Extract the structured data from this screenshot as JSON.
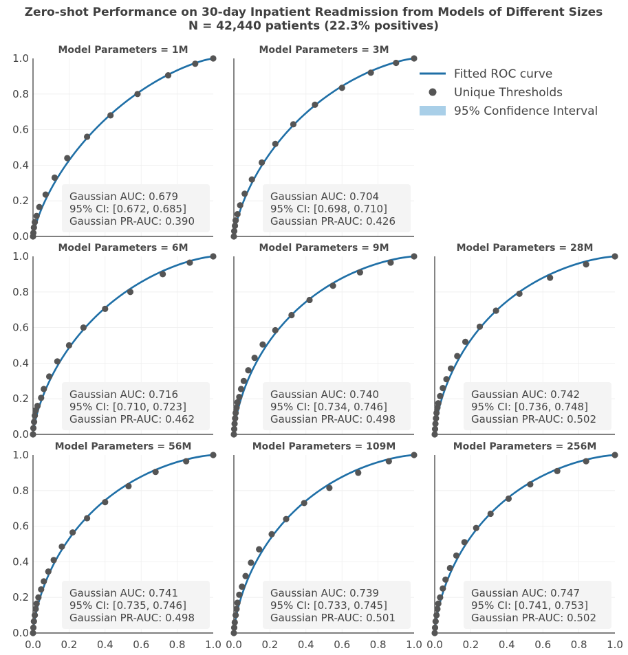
{
  "colors": {
    "curve": "#1f6fa6",
    "point": "#555555",
    "ci_fill": "#a9cfe8",
    "annotation_bg": "#f3f3f3",
    "grid": "#eeeeee",
    "axis": "#333333"
  },
  "figure": {
    "title_line1": "Zero-shot Performance on 30-day Inpatient Readmission from Models of Different Sizes",
    "title_line2": "N = 42,440 patients (22.3% positives)"
  },
  "legend": {
    "items": [
      {
        "label": "Fitted ROC curve",
        "kind": "line"
      },
      {
        "label": "Unique Thresholds",
        "kind": "point"
      },
      {
        "label": "95% Confidence Interval",
        "kind": "patch"
      }
    ]
  },
  "chart_data": [
    {
      "type": "line",
      "title": "Model Parameters = 1M",
      "xlim": [
        0,
        1
      ],
      "ylim": [
        0,
        1
      ],
      "x_ticks": [
        "0.0",
        "0.2",
        "0.4",
        "0.6",
        "0.8",
        "1.0"
      ],
      "y_ticks": [
        "0.0",
        "0.2",
        "0.4",
        "0.6",
        "0.8",
        "1.0"
      ],
      "show_x_ticks": false,
      "show_y_ticks": true,
      "gaussian_auc": 0.679,
      "annotation": [
        "Gaussian AUC: 0.679",
        "95% CI: [0.672, 0.685]",
        "Gaussian PR-AUC: 0.390"
      ],
      "points": [
        [
          0.0,
          0.0
        ],
        [
          0.002,
          0.02
        ],
        [
          0.005,
          0.05
        ],
        [
          0.01,
          0.08
        ],
        [
          0.02,
          0.115
        ],
        [
          0.035,
          0.165
        ],
        [
          0.07,
          0.235
        ],
        [
          0.12,
          0.33
        ],
        [
          0.19,
          0.44
        ],
        [
          0.3,
          0.56
        ],
        [
          0.43,
          0.68
        ],
        [
          0.58,
          0.8
        ],
        [
          0.75,
          0.905
        ],
        [
          0.9,
          0.97
        ],
        [
          1.0,
          1.0
        ]
      ]
    },
    {
      "type": "line",
      "title": "Model Parameters = 3M",
      "xlim": [
        0,
        1
      ],
      "ylim": [
        0,
        1
      ],
      "x_ticks": [
        "0.0",
        "0.2",
        "0.4",
        "0.6",
        "0.8",
        "1.0"
      ],
      "y_ticks": [
        "0.0",
        "0.2",
        "0.4",
        "0.6",
        "0.8",
        "1.0"
      ],
      "show_x_ticks": false,
      "show_y_ticks": false,
      "gaussian_auc": 0.704,
      "annotation": [
        "Gaussian AUC: 0.704",
        "95% CI: [0.698, 0.710]",
        "Gaussian PR-AUC: 0.426"
      ],
      "points": [
        [
          0.0,
          0.0
        ],
        [
          0.002,
          0.03
        ],
        [
          0.006,
          0.06
        ],
        [
          0.01,
          0.09
        ],
        [
          0.02,
          0.125
        ],
        [
          0.035,
          0.175
        ],
        [
          0.06,
          0.24
        ],
        [
          0.1,
          0.32
        ],
        [
          0.155,
          0.415
        ],
        [
          0.23,
          0.52
        ],
        [
          0.33,
          0.63
        ],
        [
          0.45,
          0.74
        ],
        [
          0.6,
          0.835
        ],
        [
          0.76,
          0.92
        ],
        [
          0.9,
          0.975
        ],
        [
          1.0,
          1.0
        ]
      ]
    },
    {
      "type": "line",
      "title": "Model Parameters = 6M",
      "xlim": [
        0,
        1
      ],
      "ylim": [
        0,
        1
      ],
      "x_ticks": [
        "0.0",
        "0.2",
        "0.4",
        "0.6",
        "0.8",
        "1.0"
      ],
      "y_ticks": [
        "0.0",
        "0.2",
        "0.4",
        "0.6",
        "0.8",
        "1.0"
      ],
      "show_x_ticks": false,
      "show_y_ticks": true,
      "gaussian_auc": 0.716,
      "annotation": [
        "Gaussian AUC: 0.716",
        "95% CI: [0.710, 0.723]",
        "Gaussian PR-AUC: 0.462"
      ],
      "points": [
        [
          0.0,
          0.0
        ],
        [
          0.002,
          0.035
        ],
        [
          0.006,
          0.07
        ],
        [
          0.01,
          0.105
        ],
        [
          0.015,
          0.135
        ],
        [
          0.025,
          0.16
        ],
        [
          0.045,
          0.205
        ],
        [
          0.06,
          0.255
        ],
        [
          0.09,
          0.325
        ],
        [
          0.135,
          0.41
        ],
        [
          0.2,
          0.5
        ],
        [
          0.28,
          0.6
        ],
        [
          0.4,
          0.705
        ],
        [
          0.54,
          0.8
        ],
        [
          0.72,
          0.9
        ],
        [
          0.87,
          0.965
        ],
        [
          1.0,
          1.0
        ]
      ]
    },
    {
      "type": "line",
      "title": "Model Parameters = 9M",
      "xlim": [
        0,
        1
      ],
      "ylim": [
        0,
        1
      ],
      "x_ticks": [
        "0.0",
        "0.2",
        "0.4",
        "0.6",
        "0.8",
        "1.0"
      ],
      "y_ticks": [
        "0.0",
        "0.2",
        "0.4",
        "0.6",
        "0.8",
        "1.0"
      ],
      "show_x_ticks": false,
      "show_y_ticks": false,
      "gaussian_auc": 0.74,
      "annotation": [
        "Gaussian AUC: 0.740",
        "95% CI: [0.734, 0.746]",
        "Gaussian PR-AUC: 0.498"
      ],
      "points": [
        [
          0.0,
          0.0
        ],
        [
          0.002,
          0.03
        ],
        [
          0.004,
          0.06
        ],
        [
          0.007,
          0.09
        ],
        [
          0.01,
          0.12
        ],
        [
          0.015,
          0.15
        ],
        [
          0.02,
          0.18
        ],
        [
          0.03,
          0.21
        ],
        [
          0.04,
          0.255
        ],
        [
          0.055,
          0.3
        ],
        [
          0.08,
          0.36
        ],
        [
          0.115,
          0.43
        ],
        [
          0.16,
          0.505
        ],
        [
          0.23,
          0.585
        ],
        [
          0.32,
          0.67
        ],
        [
          0.42,
          0.755
        ],
        [
          0.55,
          0.835
        ],
        [
          0.7,
          0.91
        ],
        [
          0.87,
          0.965
        ],
        [
          1.0,
          1.0
        ]
      ]
    },
    {
      "type": "line",
      "title": "Model Parameters = 28M",
      "xlim": [
        0,
        1
      ],
      "ylim": [
        0,
        1
      ],
      "x_ticks": [
        "0.0",
        "0.2",
        "0.4",
        "0.6",
        "0.8",
        "1.0"
      ],
      "y_ticks": [
        "0.0",
        "0.2",
        "0.4",
        "0.6",
        "0.8",
        "1.0"
      ],
      "show_x_ticks": false,
      "show_y_ticks": false,
      "gaussian_auc": 0.742,
      "annotation": [
        "Gaussian AUC: 0.742",
        "95% CI: [0.736, 0.748]",
        "Gaussian PR-AUC: 0.502"
      ],
      "points": [
        [
          0.0,
          0.0
        ],
        [
          0.002,
          0.03
        ],
        [
          0.004,
          0.06
        ],
        [
          0.007,
          0.09
        ],
        [
          0.01,
          0.12
        ],
        [
          0.015,
          0.15
        ],
        [
          0.02,
          0.175
        ],
        [
          0.03,
          0.215
        ],
        [
          0.045,
          0.26
        ],
        [
          0.065,
          0.31
        ],
        [
          0.09,
          0.37
        ],
        [
          0.125,
          0.44
        ],
        [
          0.17,
          0.52
        ],
        [
          0.25,
          0.605
        ],
        [
          0.34,
          0.695
        ],
        [
          0.47,
          0.79
        ],
        [
          0.64,
          0.88
        ],
        [
          0.84,
          0.955
        ],
        [
          1.0,
          1.0
        ]
      ]
    },
    {
      "type": "line",
      "title": "Model Parameters = 56M",
      "xlim": [
        0,
        1
      ],
      "ylim": [
        0,
        1
      ],
      "x_ticks": [
        "0.0",
        "0.2",
        "0.4",
        "0.6",
        "0.8",
        "1.0"
      ],
      "y_ticks": [
        "0.0",
        "0.2",
        "0.4",
        "0.6",
        "0.8",
        "1.0"
      ],
      "show_x_ticks": true,
      "show_y_ticks": true,
      "gaussian_auc": 0.741,
      "annotation": [
        "Gaussian AUC: 0.741",
        "95% CI: [0.735, 0.746]",
        "Gaussian PR-AUC: 0.498"
      ],
      "points": [
        [
          0.0,
          0.0
        ],
        [
          0.002,
          0.03
        ],
        [
          0.005,
          0.065
        ],
        [
          0.01,
          0.1
        ],
        [
          0.015,
          0.135
        ],
        [
          0.02,
          0.165
        ],
        [
          0.03,
          0.2
        ],
        [
          0.045,
          0.245
        ],
        [
          0.06,
          0.29
        ],
        [
          0.085,
          0.345
        ],
        [
          0.115,
          0.41
        ],
        [
          0.16,
          0.485
        ],
        [
          0.22,
          0.565
        ],
        [
          0.3,
          0.645
        ],
        [
          0.4,
          0.735
        ],
        [
          0.53,
          0.825
        ],
        [
          0.68,
          0.905
        ],
        [
          0.85,
          0.965
        ],
        [
          1.0,
          1.0
        ]
      ]
    },
    {
      "type": "line",
      "title": "Model Parameters = 109M",
      "xlim": [
        0,
        1
      ],
      "ylim": [
        0,
        1
      ],
      "x_ticks": [
        "0.0",
        "0.2",
        "0.4",
        "0.6",
        "0.8",
        "1.0"
      ],
      "y_ticks": [
        "0.0",
        "0.2",
        "0.4",
        "0.6",
        "0.8",
        "1.0"
      ],
      "show_x_ticks": true,
      "show_y_ticks": false,
      "gaussian_auc": 0.739,
      "annotation": [
        "Gaussian AUC: 0.739",
        "95% CI: [0.733, 0.745]",
        "Gaussian PR-AUC: 0.501"
      ],
      "points": [
        [
          0.0,
          0.0
        ],
        [
          0.002,
          0.03
        ],
        [
          0.005,
          0.06
        ],
        [
          0.01,
          0.1
        ],
        [
          0.015,
          0.135
        ],
        [
          0.02,
          0.17
        ],
        [
          0.03,
          0.215
        ],
        [
          0.045,
          0.26
        ],
        [
          0.065,
          0.32
        ],
        [
          0.095,
          0.395
        ],
        [
          0.14,
          0.47
        ],
        [
          0.21,
          0.555
        ],
        [
          0.29,
          0.64
        ],
        [
          0.39,
          0.73
        ],
        [
          0.53,
          0.815
        ],
        [
          0.69,
          0.9
        ],
        [
          0.86,
          0.965
        ],
        [
          1.0,
          1.0
        ]
      ]
    },
    {
      "type": "line",
      "title": "Model Parameters = 256M",
      "xlim": [
        0,
        1
      ],
      "ylim": [
        0,
        1
      ],
      "x_ticks": [
        "0.0",
        "0.2",
        "0.4",
        "0.6",
        "0.8",
        "1.0"
      ],
      "y_ticks": [
        "0.0",
        "0.2",
        "0.4",
        "0.6",
        "0.8",
        "1.0"
      ],
      "show_x_ticks": true,
      "show_y_ticks": false,
      "gaussian_auc": 0.747,
      "annotation": [
        "Gaussian AUC: 0.747",
        "95% CI: [0.741, 0.753]",
        "Gaussian PR-AUC: 0.502"
      ],
      "points": [
        [
          0.0,
          0.0
        ],
        [
          0.002,
          0.03
        ],
        [
          0.005,
          0.065
        ],
        [
          0.01,
          0.1
        ],
        [
          0.015,
          0.135
        ],
        [
          0.02,
          0.165
        ],
        [
          0.03,
          0.2
        ],
        [
          0.045,
          0.25
        ],
        [
          0.06,
          0.3
        ],
        [
          0.085,
          0.365
        ],
        [
          0.12,
          0.435
        ],
        [
          0.165,
          0.51
        ],
        [
          0.23,
          0.59
        ],
        [
          0.31,
          0.67
        ],
        [
          0.41,
          0.755
        ],
        [
          0.53,
          0.835
        ],
        [
          0.68,
          0.91
        ],
        [
          0.84,
          0.965
        ],
        [
          1.0,
          1.0
        ]
      ]
    }
  ]
}
